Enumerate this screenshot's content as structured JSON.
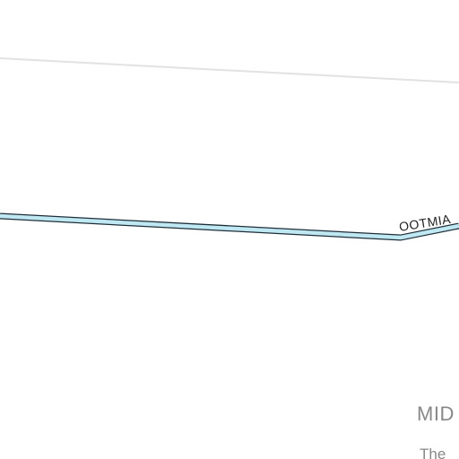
{
  "map": {
    "road_label": "OOTMIA",
    "area_label": "MID",
    "sub_label": "The",
    "colors": {
      "background": "#ffffff",
      "road_fill": "#bfe8f2",
      "road_casing": "#1f2f3a",
      "boundary_line": "#e2e2e2",
      "label_text": "#222222",
      "area_text": "#888888"
    }
  }
}
